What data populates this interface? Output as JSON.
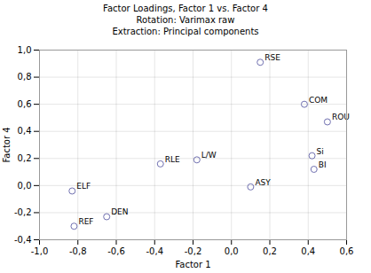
{
  "chart_data": {
    "type": "scatter",
    "title": "Factor Loadings, Factor 1 vs. Factor 4\nRotation: Varimax raw\nExtraction: Principal components",
    "xlabel": "Factor 1",
    "ylabel": "Factor 4",
    "labels": [
      "RSE",
      "COM",
      "ROU",
      "Si",
      "BI",
      "L/W",
      "RLE",
      "ASY",
      "ELF",
      "DEN",
      "REF"
    ],
    "x": [
      0.15,
      0.38,
      0.5,
      0.42,
      0.43,
      -0.18,
      -0.37,
      0.1,
      -0.83,
      -0.65,
      -0.82
    ],
    "values": [
      0.91,
      0.6,
      0.47,
      0.22,
      0.12,
      0.19,
      0.16,
      -0.01,
      -0.04,
      -0.23,
      -0.3
    ],
    "color": "#7070b0",
    "marker": "circle",
    "xlim": [
      -1.0,
      0.6
    ],
    "ylim": [
      -0.4,
      1.0
    ],
    "xticks": [
      {
        "value": -1.0,
        "label": "-1,0"
      },
      {
        "value": -0.8,
        "label": "-0,8"
      },
      {
        "value": -0.6,
        "label": "-0,6"
      },
      {
        "value": -0.4,
        "label": "-0,4"
      },
      {
        "value": -0.2,
        "label": "-0,2"
      },
      {
        "value": 0.0,
        "label": "0,0"
      },
      {
        "value": 0.2,
        "label": "0,2"
      },
      {
        "value": 0.4,
        "label": "0,4"
      },
      {
        "value": 0.6,
        "label": "0,6"
      }
    ],
    "yticks": [
      {
        "value": -0.4,
        "label": "-0,4"
      },
      {
        "value": -0.2,
        "label": "-0,2"
      },
      {
        "value": 0.0,
        "label": "0,0"
      },
      {
        "value": 0.2,
        "label": "0,2"
      },
      {
        "value": 0.4,
        "label": "0,4"
      },
      {
        "value": 0.6,
        "label": "0,6"
      },
      {
        "value": 0.8,
        "label": "0,8"
      },
      {
        "value": 1.0,
        "label": "1,0"
      }
    ],
    "grid": true
  }
}
